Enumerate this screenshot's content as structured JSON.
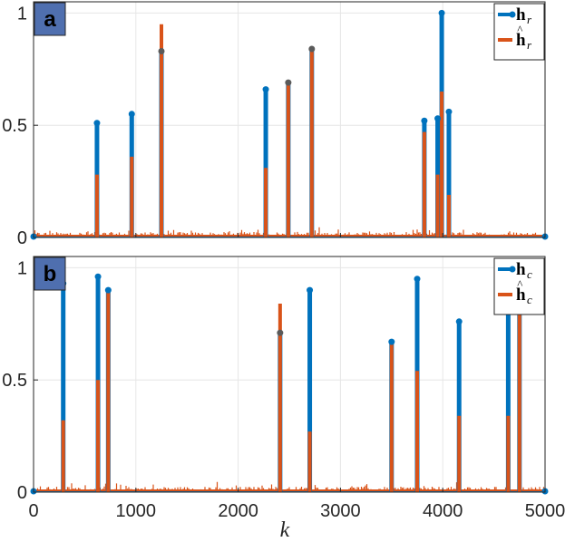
{
  "colors": {
    "true": "#0072BD",
    "est": "#D95319",
    "label_box": "#4F6FAF",
    "grid": "#E6E6E6"
  },
  "xlabel": "k",
  "chart_data": [
    {
      "type": "stem",
      "panel_label": "a",
      "xlim": [
        0,
        5000
      ],
      "ylim": [
        0,
        1.05
      ],
      "xticks": [],
      "yticks": [
        0,
        0.5,
        1
      ],
      "ytick_labels": [
        "0",
        "0.5",
        "1"
      ],
      "grid": true,
      "legend_position": "top-right",
      "series": [
        {
          "name": "h",
          "sub": "r",
          "hat": false,
          "x": [
            620,
            960,
            1250,
            2270,
            2490,
            2720,
            3820,
            3950,
            3990,
            4060
          ],
          "y": [
            0.51,
            0.55,
            0.83,
            0.66,
            0.69,
            0.84,
            0.52,
            0.53,
            1.0,
            0.56
          ]
        },
        {
          "name": "h",
          "sub": "r",
          "hat": true,
          "x": [
            620,
            960,
            1250,
            2270,
            2490,
            2720,
            3820,
            3950,
            3990,
            4060
          ],
          "y": [
            0.28,
            0.36,
            0.95,
            0.31,
            0.69,
            0.84,
            0.47,
            0.28,
            0.65,
            0.19
          ]
        }
      ]
    },
    {
      "type": "stem",
      "panel_label": "b",
      "xlim": [
        0,
        5000
      ],
      "ylim": [
        0,
        1.05
      ],
      "xticks": [
        0,
        1000,
        2000,
        3000,
        4000,
        5000
      ],
      "xtick_labels": [
        "0",
        "1000",
        "2000",
        "3000",
        "4000",
        "5000"
      ],
      "yticks": [
        0,
        0.5,
        1
      ],
      "ytick_labels": [
        "0",
        "0.5",
        "1"
      ],
      "grid": true,
      "legend_position": "top-right",
      "series": [
        {
          "name": "h",
          "sub": "c",
          "hat": false,
          "x": [
            290,
            630,
            730,
            2410,
            2700,
            3500,
            3750,
            4160,
            4640,
            4750
          ],
          "y": [
            0.93,
            0.96,
            0.9,
            0.71,
            0.9,
            0.67,
            0.95,
            0.76,
            0.87,
            0.85
          ]
        },
        {
          "name": "h",
          "sub": "c",
          "hat": true,
          "x": [
            290,
            630,
            730,
            2410,
            2700,
            3500,
            3750,
            4160,
            4640,
            4750
          ],
          "y": [
            0.32,
            0.5,
            0.89,
            0.84,
            0.27,
            0.66,
            0.54,
            0.34,
            0.34,
            0.85
          ]
        }
      ]
    }
  ]
}
